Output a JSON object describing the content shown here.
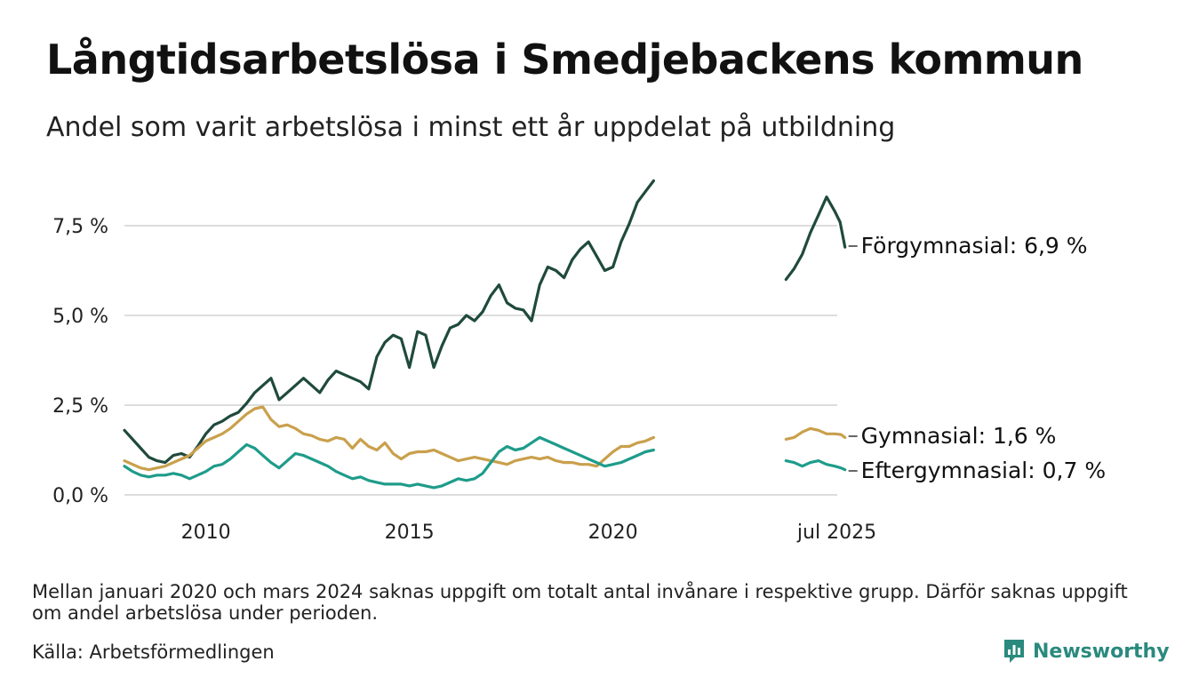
{
  "header": {
    "title": "Långtidsarbetslösa i Smedjebackens kommun",
    "subtitle": "Andel som varit arbetslösa i minst ett år uppdelat på utbildning"
  },
  "footer": {
    "note": "Mellan januari 2020 och mars 2024 saknas uppgift om totalt antal invånare i respektive grupp. Därför saknas uppgift om andel arbetslösa under perioden.",
    "source": "Källa: Arbetsförmedlingen",
    "brand": "Newsworthy"
  },
  "chart_data": {
    "type": "line",
    "title": "Långtidsarbetslösa i Smedjebackens kommun",
    "subtitle": "Andel som varit arbetslösa i minst ett år uppdelat på utbildning",
    "ylim": [
      0,
      9
    ],
    "yticks": [
      0,
      2.5,
      5.0,
      7.5
    ],
    "ytick_labels": [
      "0,0 %",
      "2,5 %",
      "5,0 %",
      "7,5 %"
    ],
    "xlim": [
      2008.0,
      2025.6
    ],
    "xticks": [
      2010,
      2015,
      2020,
      2025.5
    ],
    "xtick_labels": [
      "2010",
      "2015",
      "2020",
      "jul 2025"
    ],
    "grid": "horizontal",
    "legend": "direct labels at line ends",
    "colors": {
      "forgymnasial": "#1f4a3d",
      "gymnasial": "#c9a04c",
      "eftergymnasial": "#1e9c8a",
      "grid": "#dddddd",
      "brand": "#2a8a7e"
    },
    "series": [
      {
        "key": "forgymnasial",
        "end_label": "Förgymnasial: 6,9 %",
        "segments": [
          [
            [
              2008.0,
              1.8
            ],
            [
              2008.2,
              1.55
            ],
            [
              2008.4,
              1.3
            ],
            [
              2008.6,
              1.05
            ],
            [
              2008.8,
              0.95
            ],
            [
              2009.0,
              0.9
            ],
            [
              2009.2,
              1.1
            ],
            [
              2009.4,
              1.15
            ],
            [
              2009.6,
              1.05
            ],
            [
              2009.8,
              1.35
            ],
            [
              2010.0,
              1.7
            ],
            [
              2010.2,
              1.95
            ],
            [
              2010.4,
              2.05
            ],
            [
              2010.6,
              2.2
            ],
            [
              2010.8,
              2.3
            ],
            [
              2011.0,
              2.55
            ],
            [
              2011.2,
              2.85
            ],
            [
              2011.4,
              3.05
            ],
            [
              2011.6,
              3.25
            ],
            [
              2011.8,
              2.65
            ],
            [
              2012.0,
              2.85
            ],
            [
              2012.2,
              3.05
            ],
            [
              2012.4,
              3.25
            ],
            [
              2012.6,
              3.05
            ],
            [
              2012.8,
              2.85
            ],
            [
              2013.0,
              3.2
            ],
            [
              2013.2,
              3.45
            ],
            [
              2013.4,
              3.35
            ],
            [
              2013.6,
              3.25
            ],
            [
              2013.8,
              3.15
            ],
            [
              2014.0,
              2.95
            ],
            [
              2014.2,
              3.85
            ],
            [
              2014.4,
              4.25
            ],
            [
              2014.6,
              4.45
            ],
            [
              2014.8,
              4.35
            ],
            [
              2015.0,
              3.55
            ],
            [
              2015.2,
              4.55
            ],
            [
              2015.4,
              4.45
            ],
            [
              2015.6,
              3.55
            ],
            [
              2015.8,
              4.15
            ],
            [
              2016.0,
              4.65
            ],
            [
              2016.2,
              4.75
            ],
            [
              2016.4,
              5.0
            ],
            [
              2016.6,
              4.85
            ],
            [
              2016.8,
              5.1
            ],
            [
              2017.0,
              5.55
            ],
            [
              2017.2,
              5.85
            ],
            [
              2017.4,
              5.35
            ],
            [
              2017.6,
              5.2
            ],
            [
              2017.8,
              5.15
            ],
            [
              2018.0,
              4.85
            ],
            [
              2018.2,
              5.85
            ],
            [
              2018.4,
              6.35
            ],
            [
              2018.6,
              6.25
            ],
            [
              2018.8,
              6.05
            ],
            [
              2019.0,
              6.55
            ],
            [
              2019.2,
              6.85
            ],
            [
              2019.4,
              7.05
            ],
            [
              2019.6,
              6.65
            ],
            [
              2019.8,
              6.25
            ],
            [
              2020.0,
              6.35
            ],
            [
              2020.2,
              7.05
            ],
            [
              2020.4,
              7.55
            ],
            [
              2020.6,
              8.15
            ],
            [
              2020.8,
              8.45
            ],
            [
              2021.0,
              8.75
            ]
          ],
          [
            [
              2024.25,
              6.0
            ],
            [
              2024.45,
              6.3
            ],
            [
              2024.65,
              6.7
            ],
            [
              2024.85,
              7.3
            ],
            [
              2025.05,
              7.8
            ],
            [
              2025.25,
              8.3
            ],
            [
              2025.45,
              7.9
            ],
            [
              2025.58,
              7.6
            ],
            [
              2025.7,
              6.9
            ]
          ]
        ]
      },
      {
        "key": "gymnasial",
        "end_label": "Gymnasial: 1,6 %",
        "segments": [
          [
            [
              2008.0,
              0.95
            ],
            [
              2008.2,
              0.85
            ],
            [
              2008.4,
              0.75
            ],
            [
              2008.6,
              0.7
            ],
            [
              2008.8,
              0.75
            ],
            [
              2009.0,
              0.8
            ],
            [
              2009.2,
              0.9
            ],
            [
              2009.4,
              1.0
            ],
            [
              2009.6,
              1.1
            ],
            [
              2009.8,
              1.3
            ],
            [
              2010.0,
              1.5
            ],
            [
              2010.2,
              1.6
            ],
            [
              2010.4,
              1.7
            ],
            [
              2010.6,
              1.85
            ],
            [
              2010.8,
              2.05
            ],
            [
              2011.0,
              2.25
            ],
            [
              2011.2,
              2.4
            ],
            [
              2011.4,
              2.45
            ],
            [
              2011.6,
              2.1
            ],
            [
              2011.8,
              1.9
            ],
            [
              2012.0,
              1.95
            ],
            [
              2012.2,
              1.85
            ],
            [
              2012.4,
              1.7
            ],
            [
              2012.6,
              1.65
            ],
            [
              2012.8,
              1.55
            ],
            [
              2013.0,
              1.5
            ],
            [
              2013.2,
              1.6
            ],
            [
              2013.4,
              1.55
            ],
            [
              2013.6,
              1.3
            ],
            [
              2013.8,
              1.55
            ],
            [
              2014.0,
              1.35
            ],
            [
              2014.2,
              1.25
            ],
            [
              2014.4,
              1.45
            ],
            [
              2014.6,
              1.15
            ],
            [
              2014.8,
              1.0
            ],
            [
              2015.0,
              1.15
            ],
            [
              2015.2,
              1.2
            ],
            [
              2015.4,
              1.2
            ],
            [
              2015.6,
              1.25
            ],
            [
              2015.8,
              1.15
            ],
            [
              2016.0,
              1.05
            ],
            [
              2016.2,
              0.95
            ],
            [
              2016.4,
              1.0
            ],
            [
              2016.6,
              1.05
            ],
            [
              2016.8,
              1.0
            ],
            [
              2017.0,
              0.95
            ],
            [
              2017.2,
              0.9
            ],
            [
              2017.4,
              0.85
            ],
            [
              2017.6,
              0.95
            ],
            [
              2017.8,
              1.0
            ],
            [
              2018.0,
              1.05
            ],
            [
              2018.2,
              1.0
            ],
            [
              2018.4,
              1.05
            ],
            [
              2018.6,
              0.95
            ],
            [
              2018.8,
              0.9
            ],
            [
              2019.0,
              0.9
            ],
            [
              2019.2,
              0.85
            ],
            [
              2019.4,
              0.85
            ],
            [
              2019.6,
              0.8
            ],
            [
              2019.8,
              1.0
            ],
            [
              2020.0,
              1.2
            ],
            [
              2020.2,
              1.35
            ],
            [
              2020.4,
              1.35
            ],
            [
              2020.6,
              1.45
            ],
            [
              2020.8,
              1.5
            ],
            [
              2021.0,
              1.6
            ]
          ],
          [
            [
              2024.25,
              1.55
            ],
            [
              2024.45,
              1.6
            ],
            [
              2024.65,
              1.75
            ],
            [
              2024.85,
              1.85
            ],
            [
              2025.05,
              1.8
            ],
            [
              2025.25,
              1.7
            ],
            [
              2025.45,
              1.7
            ],
            [
              2025.6,
              1.68
            ],
            [
              2025.7,
              1.6
            ]
          ]
        ]
      },
      {
        "key": "eftergymnasial",
        "end_label": "Eftergymnasial: 0,7 %",
        "segments": [
          [
            [
              2008.0,
              0.8
            ],
            [
              2008.2,
              0.65
            ],
            [
              2008.4,
              0.55
            ],
            [
              2008.6,
              0.5
            ],
            [
              2008.8,
              0.55
            ],
            [
              2009.0,
              0.55
            ],
            [
              2009.2,
              0.6
            ],
            [
              2009.4,
              0.55
            ],
            [
              2009.6,
              0.45
            ],
            [
              2009.8,
              0.55
            ],
            [
              2010.0,
              0.65
            ],
            [
              2010.2,
              0.8
            ],
            [
              2010.4,
              0.85
            ],
            [
              2010.6,
              1.0
            ],
            [
              2010.8,
              1.2
            ],
            [
              2011.0,
              1.4
            ],
            [
              2011.2,
              1.3
            ],
            [
              2011.4,
              1.1
            ],
            [
              2011.6,
              0.9
            ],
            [
              2011.8,
              0.75
            ],
            [
              2012.0,
              0.95
            ],
            [
              2012.2,
              1.15
            ],
            [
              2012.4,
              1.1
            ],
            [
              2012.6,
              1.0
            ],
            [
              2012.8,
              0.9
            ],
            [
              2013.0,
              0.8
            ],
            [
              2013.2,
              0.65
            ],
            [
              2013.4,
              0.55
            ],
            [
              2013.6,
              0.45
            ],
            [
              2013.8,
              0.5
            ],
            [
              2014.0,
              0.4
            ],
            [
              2014.2,
              0.35
            ],
            [
              2014.4,
              0.3
            ],
            [
              2014.6,
              0.3
            ],
            [
              2014.8,
              0.3
            ],
            [
              2015.0,
              0.25
            ],
            [
              2015.2,
              0.3
            ],
            [
              2015.4,
              0.25
            ],
            [
              2015.6,
              0.2
            ],
            [
              2015.8,
              0.25
            ],
            [
              2016.0,
              0.35
            ],
            [
              2016.2,
              0.45
            ],
            [
              2016.4,
              0.4
            ],
            [
              2016.6,
              0.45
            ],
            [
              2016.8,
              0.6
            ],
            [
              2017.0,
              0.9
            ],
            [
              2017.2,
              1.2
            ],
            [
              2017.4,
              1.35
            ],
            [
              2017.6,
              1.25
            ],
            [
              2017.8,
              1.3
            ],
            [
              2018.0,
              1.45
            ],
            [
              2018.2,
              1.6
            ],
            [
              2018.4,
              1.5
            ],
            [
              2018.6,
              1.4
            ],
            [
              2018.8,
              1.3
            ],
            [
              2019.0,
              1.2
            ],
            [
              2019.2,
              1.1
            ],
            [
              2019.4,
              1.0
            ],
            [
              2019.6,
              0.9
            ],
            [
              2019.8,
              0.8
            ],
            [
              2020.0,
              0.85
            ],
            [
              2020.2,
              0.9
            ],
            [
              2020.4,
              1.0
            ],
            [
              2020.6,
              1.1
            ],
            [
              2020.8,
              1.2
            ],
            [
              2021.0,
              1.25
            ]
          ],
          [
            [
              2024.25,
              0.95
            ],
            [
              2024.45,
              0.9
            ],
            [
              2024.65,
              0.8
            ],
            [
              2024.85,
              0.9
            ],
            [
              2025.05,
              0.95
            ],
            [
              2025.25,
              0.85
            ],
            [
              2025.45,
              0.8
            ],
            [
              2025.6,
              0.75
            ],
            [
              2025.7,
              0.7
            ]
          ]
        ]
      }
    ]
  }
}
